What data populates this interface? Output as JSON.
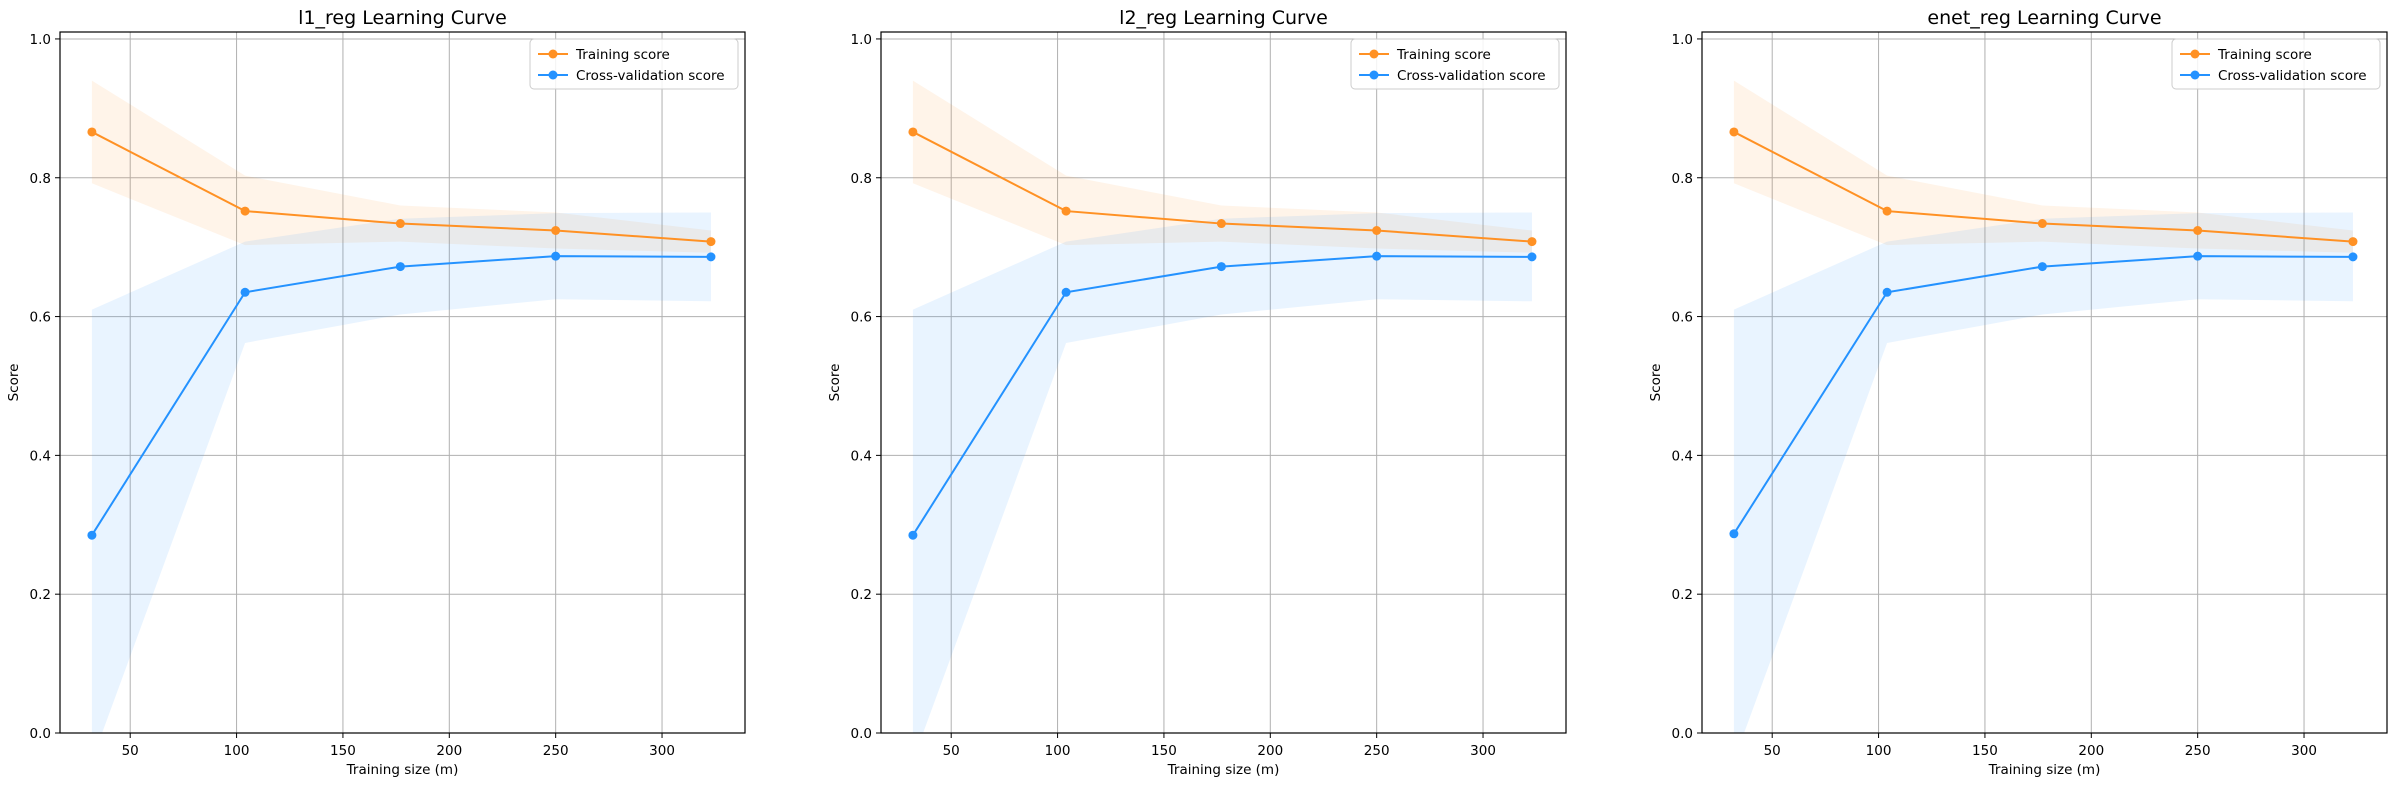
{
  "chart_data": [
    {
      "type": "line",
      "title": "l1_reg Learning Curve",
      "xlabel": "Training size (m)",
      "ylabel": "Score",
      "xlim": [
        17,
        339
      ],
      "ylim": [
        0.0,
        1.01
      ],
      "xticks": [
        50,
        100,
        150,
        200,
        250,
        300
      ],
      "yticks": [
        0.0,
        0.2,
        0.4,
        0.6,
        0.8,
        1.0
      ],
      "grid": true,
      "legend_position": "top-right",
      "x": [
        32,
        104,
        177,
        250,
        323
      ],
      "series": [
        {
          "name": "Training score",
          "color": "#ff9124",
          "values": [
            0.866,
            0.752,
            0.734,
            0.724,
            0.708
          ],
          "band_low": [
            0.792,
            0.703,
            0.708,
            0.698,
            0.692
          ],
          "band_high": [
            0.94,
            0.803,
            0.76,
            0.75,
            0.724
          ]
        },
        {
          "name": "Cross-validation score",
          "color": "#2492ff",
          "values": [
            0.285,
            0.635,
            0.672,
            0.687,
            0.686
          ],
          "band_low": [
            -0.04,
            0.562,
            0.603,
            0.625,
            0.622
          ],
          "band_high": [
            0.61,
            0.708,
            0.741,
            0.749,
            0.75
          ]
        }
      ]
    },
    {
      "type": "line",
      "title": "l2_reg Learning Curve",
      "xlabel": "Training size (m)",
      "ylabel": "Score",
      "xlim": [
        17,
        339
      ],
      "ylim": [
        0.0,
        1.01
      ],
      "xticks": [
        50,
        100,
        150,
        200,
        250,
        300
      ],
      "yticks": [
        0.0,
        0.2,
        0.4,
        0.6,
        0.8,
        1.0
      ],
      "grid": true,
      "legend_position": "top-right",
      "x": [
        32,
        104,
        177,
        250,
        323
      ],
      "series": [
        {
          "name": "Training score",
          "color": "#ff9124",
          "values": [
            0.866,
            0.752,
            0.734,
            0.724,
            0.708
          ],
          "band_low": [
            0.792,
            0.703,
            0.708,
            0.698,
            0.692
          ],
          "band_high": [
            0.94,
            0.803,
            0.76,
            0.75,
            0.724
          ]
        },
        {
          "name": "Cross-validation score",
          "color": "#2492ff",
          "values": [
            0.285,
            0.635,
            0.672,
            0.687,
            0.686
          ],
          "band_low": [
            -0.04,
            0.562,
            0.603,
            0.625,
            0.622
          ],
          "band_high": [
            0.61,
            0.708,
            0.741,
            0.749,
            0.75
          ]
        }
      ]
    },
    {
      "type": "line",
      "title": "enet_reg Learning Curve",
      "xlabel": "Training size (m)",
      "ylabel": "Score",
      "xlim": [
        17,
        339
      ],
      "ylim": [
        0.0,
        1.01
      ],
      "xticks": [
        50,
        100,
        150,
        200,
        250,
        300
      ],
      "yticks": [
        0.0,
        0.2,
        0.4,
        0.6,
        0.8,
        1.0
      ],
      "grid": true,
      "legend_position": "top-right",
      "x": [
        32,
        104,
        177,
        250,
        323
      ],
      "series": [
        {
          "name": "Training score",
          "color": "#ff9124",
          "values": [
            0.866,
            0.752,
            0.734,
            0.724,
            0.708
          ],
          "band_low": [
            0.792,
            0.703,
            0.708,
            0.698,
            0.692
          ],
          "band_high": [
            0.94,
            0.803,
            0.76,
            0.75,
            0.724
          ]
        },
        {
          "name": "Cross-validation score",
          "color": "#2492ff",
          "values": [
            0.287,
            0.635,
            0.672,
            0.687,
            0.686
          ],
          "band_low": [
            -0.04,
            0.562,
            0.603,
            0.625,
            0.622
          ],
          "band_high": [
            0.61,
            0.708,
            0.741,
            0.749,
            0.75
          ]
        }
      ]
    }
  ]
}
